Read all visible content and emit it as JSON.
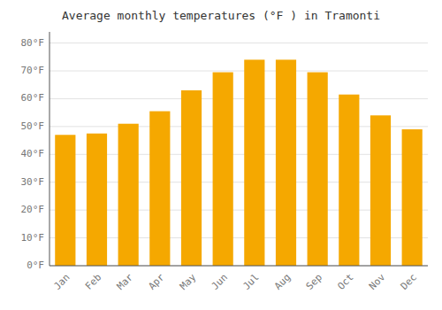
{
  "chart_data": {
    "type": "bar",
    "title": "Average monthly temperatures (°F ) in Tramonti",
    "categories": [
      "Jan",
      "Feb",
      "Mar",
      "Apr",
      "May",
      "Jun",
      "Jul",
      "Aug",
      "Sep",
      "Oct",
      "Nov",
      "Dec"
    ],
    "values": [
      47,
      47.5,
      51,
      55.5,
      63,
      69.5,
      74,
      74,
      69.5,
      61.5,
      54,
      49
    ],
    "color": "#F5A800",
    "ylim": [
      0,
      84
    ],
    "yticks": [
      {
        "value": 0,
        "label": "0°F"
      },
      {
        "value": 10,
        "label": "10°F"
      },
      {
        "value": 20,
        "label": "20°F"
      },
      {
        "value": 30,
        "label": "30°F"
      },
      {
        "value": 40,
        "label": "40°F"
      },
      {
        "value": 50,
        "label": "50°F"
      },
      {
        "value": 60,
        "label": "60°F"
      },
      {
        "value": 70,
        "label": "70°F"
      },
      {
        "value": 80,
        "label": "80°F"
      }
    ],
    "grid": true
  }
}
